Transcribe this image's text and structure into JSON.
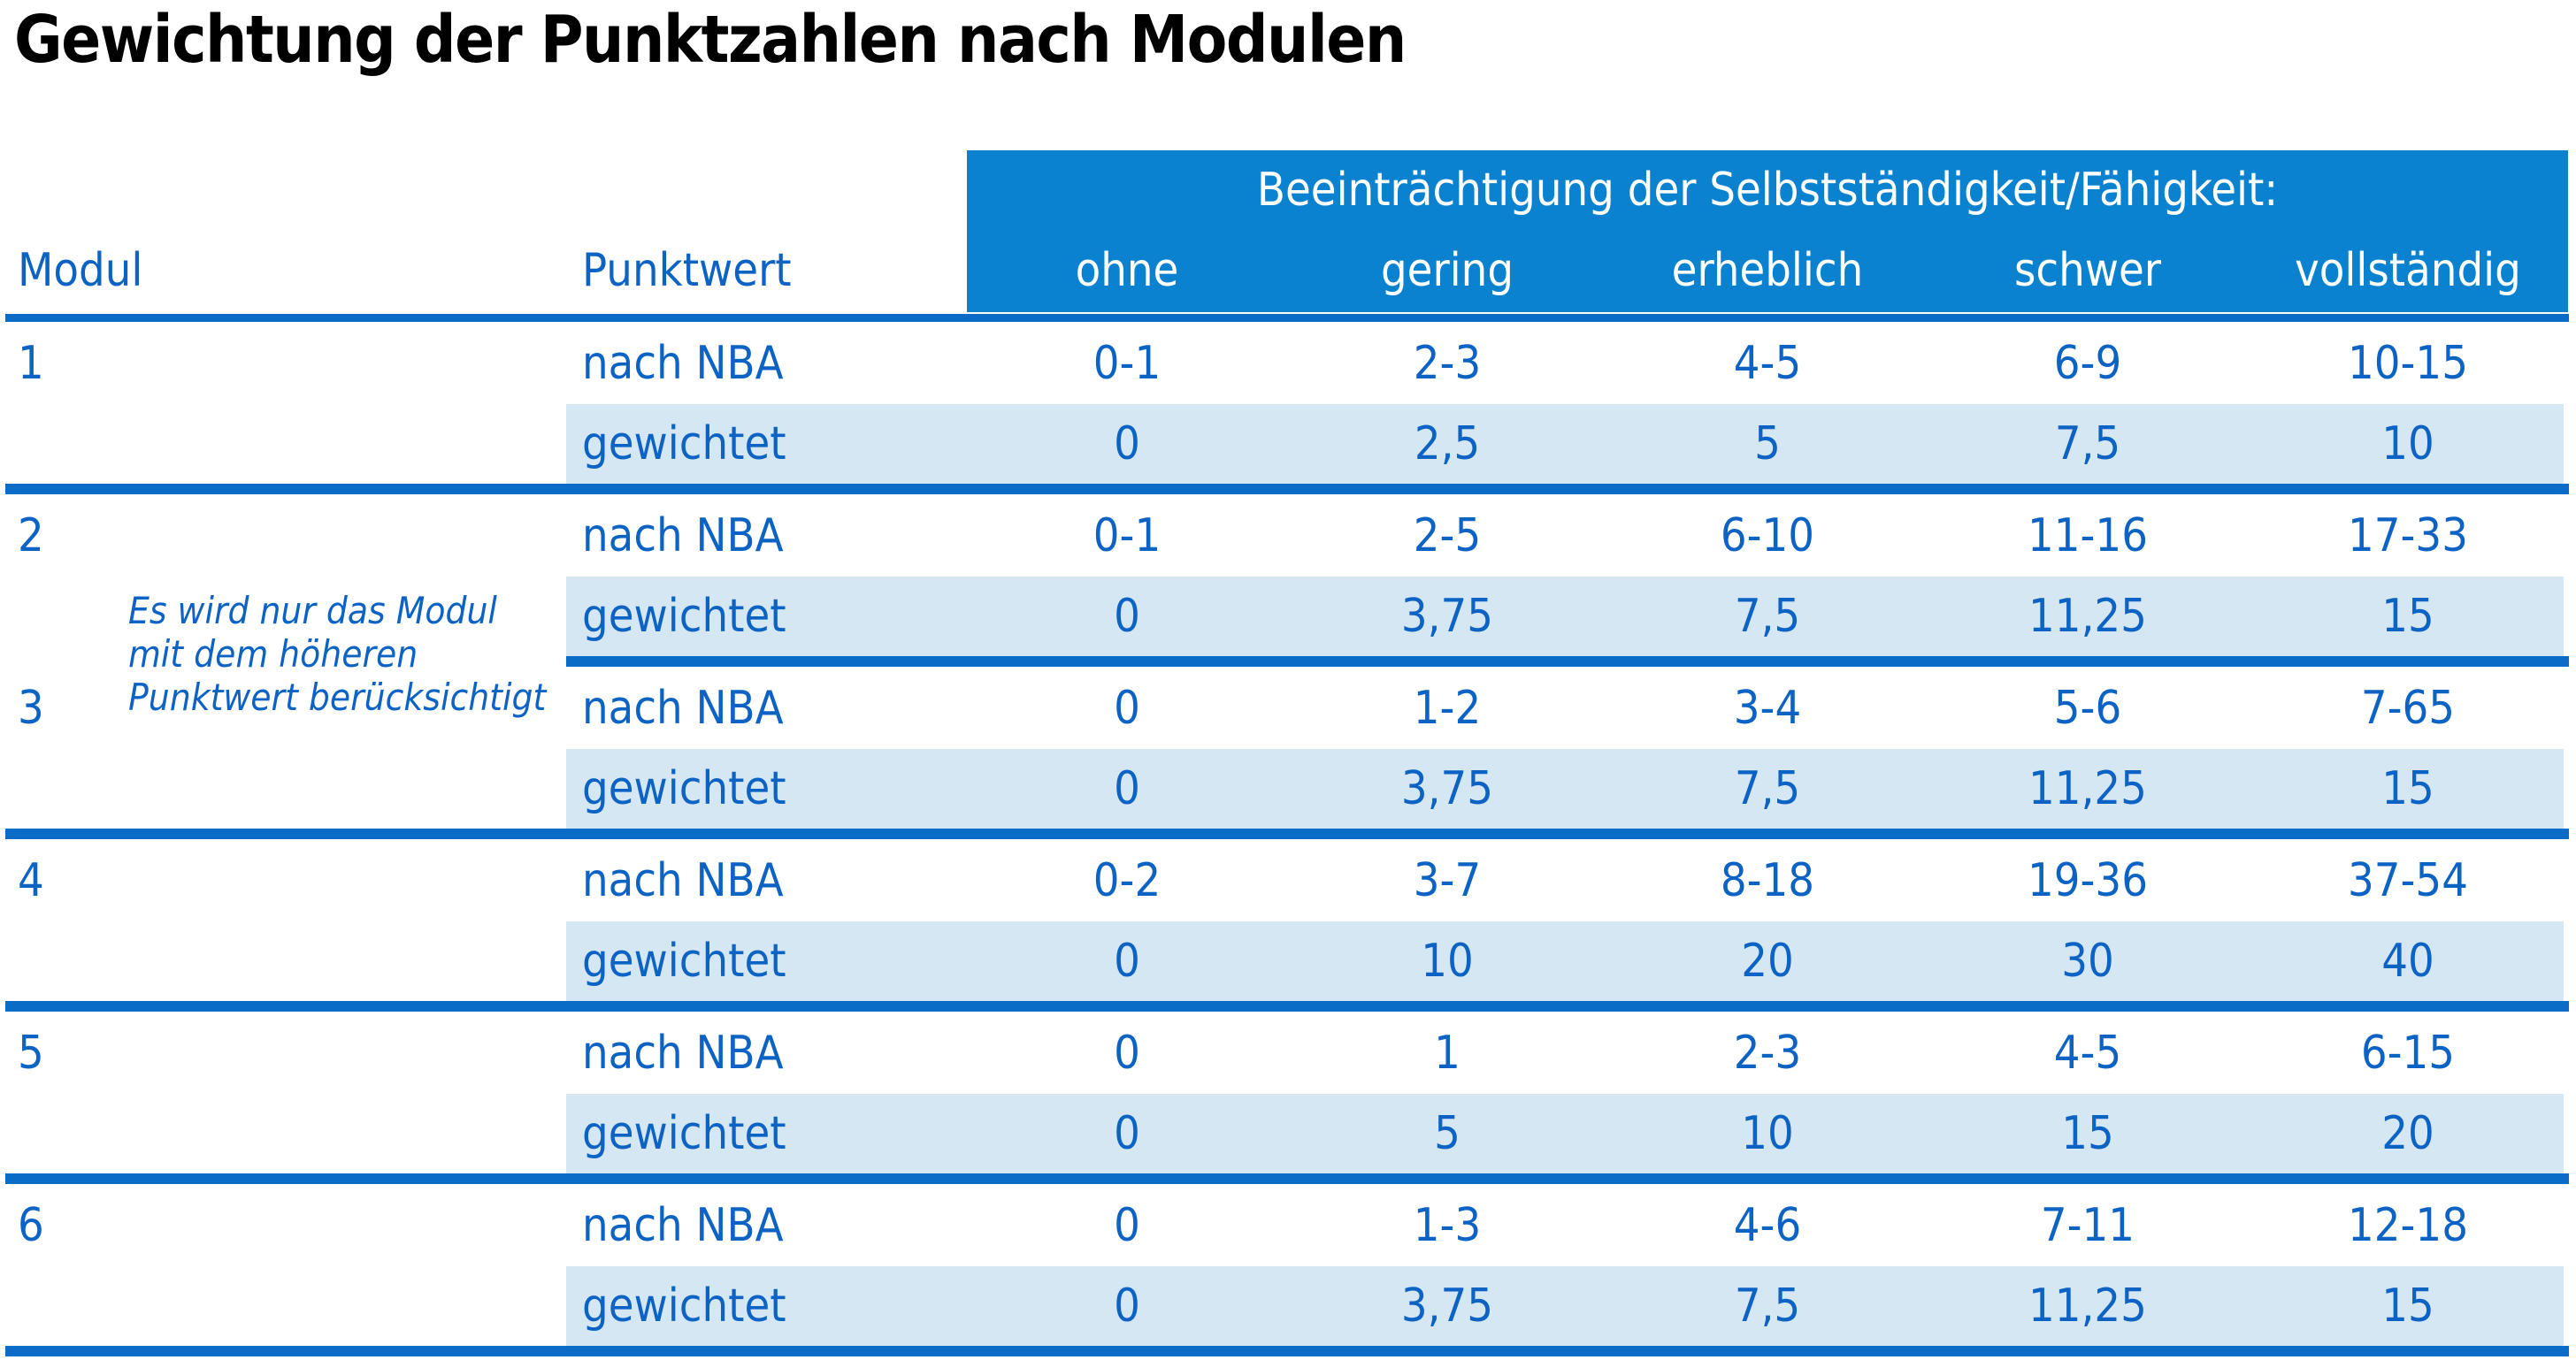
{
  "title": "Gewichtung der Punktzahlen nach Modulen",
  "colors": {
    "header_blue": "#0a82d0",
    "separator_blue": "#0b6cc7",
    "weighted_row_blue": "#d5e7f3",
    "text_blue": "#0d63c4"
  },
  "table": {
    "group_header": "Beeinträchtigung der Selbstständigkeit/Fähigkeit:",
    "col_modul": "Modul",
    "col_punktwert": "Punktwert",
    "severity_levels": [
      "ohne",
      "gering",
      "erheblich",
      "schwer",
      "vollständig"
    ],
    "row_label_nba": "nach NBA",
    "row_label_weighted": "gewichtet",
    "note": {
      "lines": [
        "Es wird nur das Modul",
        "mit dem höheren",
        "Punktwert berücksichtigt"
      ]
    },
    "modules": [
      {
        "id": "1",
        "nba": [
          "0-1",
          "2-3",
          "4-5",
          "6-9",
          "10-15"
        ],
        "weighted": [
          "0",
          "2,5",
          "5",
          "7,5",
          "10"
        ]
      },
      {
        "id": "2",
        "nba": [
          "0-1",
          "2-5",
          "6-10",
          "11-16",
          "17-33"
        ],
        "weighted": [
          "0",
          "3,75",
          "7,5",
          "11,25",
          "15"
        ]
      },
      {
        "id": "3",
        "nba": [
          "0",
          "1-2",
          "3-4",
          "5-6",
          "7-65"
        ],
        "weighted": [
          "0",
          "3,75",
          "7,5",
          "11,25",
          "15"
        ]
      },
      {
        "id": "4",
        "nba": [
          "0-2",
          "3-7",
          "8-18",
          "19-36",
          "37-54"
        ],
        "weighted": [
          "0",
          "10",
          "20",
          "30",
          "40"
        ]
      },
      {
        "id": "5",
        "nba": [
          "0",
          "1",
          "2-3",
          "4-5",
          "6-15"
        ],
        "weighted": [
          "0",
          "5",
          "10",
          "15",
          "20"
        ]
      },
      {
        "id": "6",
        "nba": [
          "0",
          "1-3",
          "4-6",
          "7-11",
          "12-18"
        ],
        "weighted": [
          "0",
          "3,75",
          "7,5",
          "11,25",
          "15"
        ]
      }
    ]
  }
}
